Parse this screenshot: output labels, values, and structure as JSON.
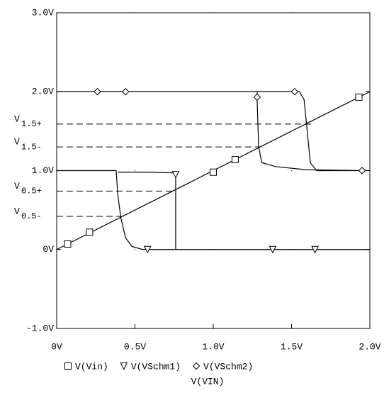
{
  "chart_data": {
    "type": "line",
    "xlabel": "V(VIN)",
    "xlim": [
      0,
      2
    ],
    "ylim": [
      -1,
      3
    ],
    "xticks": [
      {
        "value": 0,
        "label": "0V"
      },
      {
        "value": 0.5,
        "label": "0.5V"
      },
      {
        "value": 1,
        "label": "1.0V"
      },
      {
        "value": 1.5,
        "label": "1.5V"
      },
      {
        "value": 2,
        "label": "2.0V"
      }
    ],
    "yticks": [
      {
        "value": -1,
        "label": "-1.0V"
      },
      {
        "value": 0,
        "label": "0V"
      },
      {
        "value": 1,
        "label": "1.0V"
      },
      {
        "value": 2,
        "label": "2.0V"
      },
      {
        "value": 3,
        "label": "3.0V"
      }
    ],
    "grid": "dotted",
    "color": "#000000",
    "reference_lines": [
      {
        "label": "V",
        "subscript": "1.5+",
        "value": 1.59,
        "x_end": 1.64
      },
      {
        "label": "V",
        "subscript": "1.5-",
        "value": 1.3,
        "x_end": 1.3
      },
      {
        "label": "V",
        "subscript": "0.5+",
        "value": 0.74,
        "x_end": 0.76
      },
      {
        "label": "V",
        "subscript": "0.5-",
        "value": 0.42,
        "x_end": 0.42
      }
    ],
    "series": [
      {
        "name": "V(Vin)",
        "marker": "square",
        "x": [
          0,
          2
        ],
        "values": [
          0,
          2
        ],
        "markers": {
          "x": [
            0.07,
            0.21,
            1.0,
            1.14,
            1.93
          ],
          "values": [
            0.07,
            0.22,
            0.98,
            1.14,
            1.93
          ]
        }
      },
      {
        "name": "V(VSchm1)",
        "marker": "triangle",
        "x": [
          0,
          0.38,
          0.39,
          0.41,
          0.44,
          0.48,
          0.55,
          2.0,
          null,
          0.39,
          0.6,
          0.76,
          0.76,
          0.9
        ],
        "values": [
          1.0,
          1.0,
          0.7,
          0.4,
          0.15,
          0.04,
          0,
          0,
          null,
          0.98,
          0.98,
          0.97,
          0,
          0
        ],
        "markers": {
          "x": [
            0.58,
            0.76,
            1.38,
            1.65
          ],
          "values": [
            0,
            0.95,
            0,
            0
          ]
        }
      },
      {
        "name": "V(VSchm2)",
        "marker": "diamond",
        "x": [
          0,
          1.28,
          1.28,
          1.29,
          1.31,
          1.4,
          1.6,
          2.0,
          null,
          1.28,
          1.55,
          1.58,
          1.6,
          1.62,
          1.66,
          2.0
        ],
        "values": [
          2,
          2,
          1.9,
          1.3,
          1.1,
          1.05,
          1.01,
          1.0,
          null,
          2,
          2,
          1.9,
          1.5,
          1.1,
          1.0,
          1.0
        ],
        "markers": {
          "x": [
            0.26,
            0.44,
            1.28,
            1.52,
            1.95
          ],
          "values": [
            2,
            2,
            1.93,
            2,
            1.0
          ]
        }
      }
    ]
  }
}
